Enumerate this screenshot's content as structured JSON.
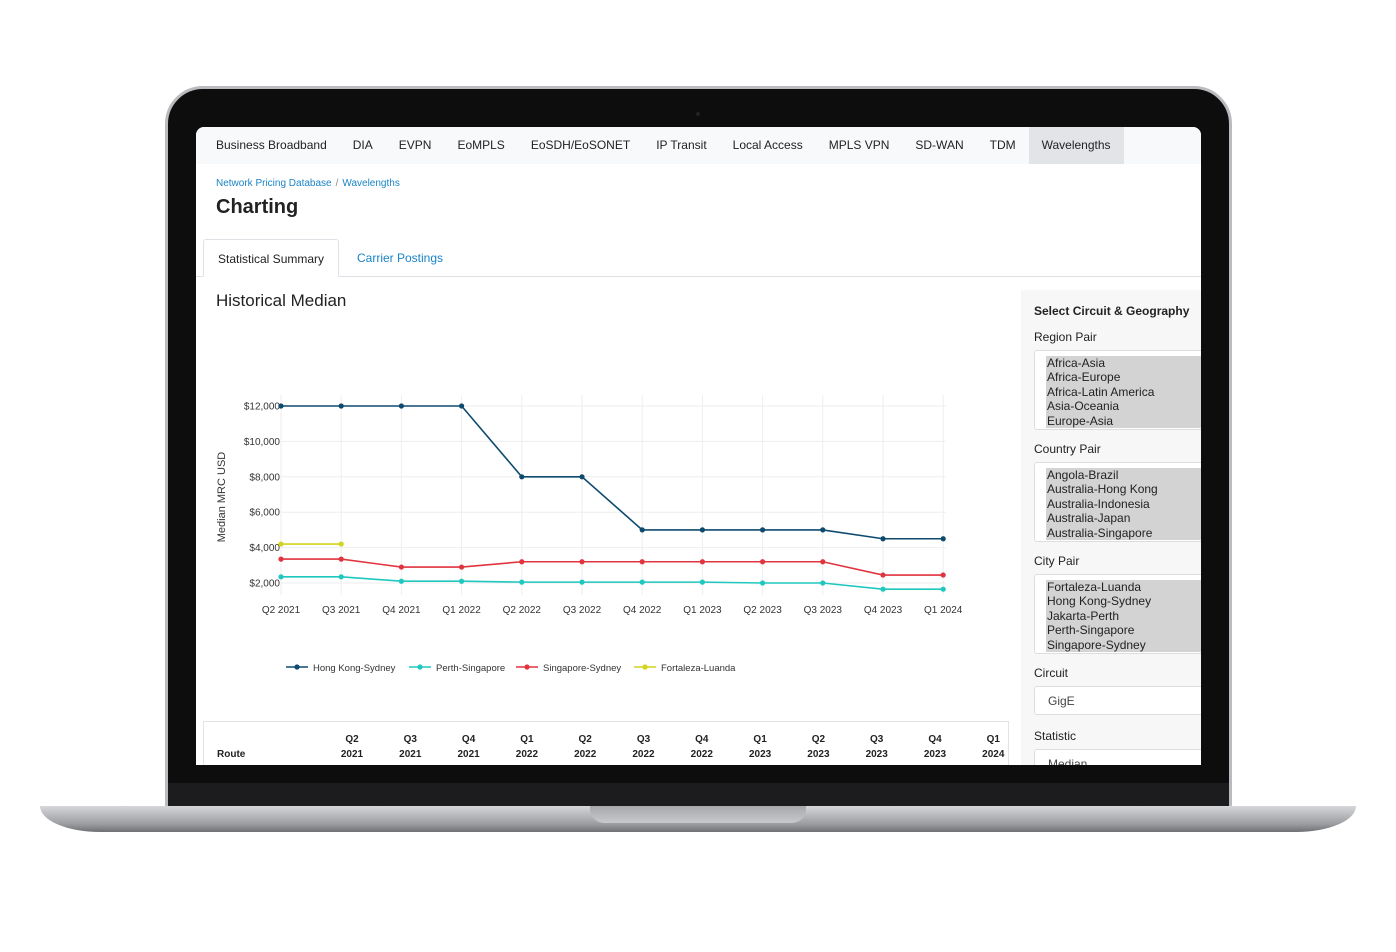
{
  "nav": {
    "items": [
      "Business Broadband",
      "DIA",
      "EVPN",
      "EoMPLS",
      "EoSDH/EoSONET",
      "IP Transit",
      "Local Access",
      "MPLS VPN",
      "SD-WAN",
      "TDM",
      "Wavelengths"
    ],
    "active": "Wavelengths"
  },
  "breadcrumb": [
    "Network Pricing Database",
    "Wavelengths"
  ],
  "page_title": "Charting",
  "tabs": [
    "Statistical Summary",
    "Carrier Postings"
  ],
  "section_title": "Historical Median",
  "sidebar": {
    "title": "Select Circuit & Geography",
    "region_label": "Region Pair",
    "region_options": [
      "Africa-Asia",
      "Africa-Europe",
      "Africa-Latin America",
      "Asia-Oceania",
      "Europe-Asia"
    ],
    "country_label": "Country Pair",
    "country_options": [
      "Angola-Brazil",
      "Australia-Hong Kong",
      "Australia-Indonesia",
      "Australia-Japan",
      "Australia-Singapore"
    ],
    "city_label": "City Pair",
    "city_options": [
      "Fortaleza-Luanda",
      "Hong Kong-Sydney",
      "Jakarta-Perth",
      "Perth-Singapore",
      "Singapore-Sydney"
    ],
    "circuit_label": "Circuit",
    "circuit_value": "GigE",
    "statistic_label": "Statistic",
    "statistic_value": "Median"
  },
  "table": {
    "route_header": "Route",
    "columns": [
      [
        "Q2",
        "2021"
      ],
      [
        "Q3",
        "2021"
      ],
      [
        "Q4",
        "2021"
      ],
      [
        "Q1",
        "2022"
      ],
      [
        "Q2",
        "2022"
      ],
      [
        "Q3",
        "2022"
      ],
      [
        "Q4",
        "2022"
      ],
      [
        "Q1",
        "2023"
      ],
      [
        "Q2",
        "2023"
      ],
      [
        "Q3",
        "2023"
      ],
      [
        "Q4",
        "2023"
      ],
      [
        "Q1",
        "2024"
      ]
    ]
  },
  "chart_data": {
    "type": "line",
    "ylabel": "Median MRC USD",
    "ylim": [
      0,
      12500
    ],
    "yticks": [
      2000,
      4000,
      6000,
      8000,
      10000,
      12000
    ],
    "ytick_labels": [
      "$2,000",
      "$4,000",
      "$6,000",
      "$8,000",
      "$10,000",
      "$12,000"
    ],
    "grid": true,
    "legend": "bottom",
    "categories": [
      "Q2 2021",
      "Q3 2021",
      "Q4 2021",
      "Q1 2022",
      "Q2 2022",
      "Q3 2022",
      "Q4 2022",
      "Q1 2023",
      "Q2 2023",
      "Q3 2023",
      "Q4 2023",
      "Q1 2024"
    ],
    "series": [
      {
        "name": "Hong Kong-Sydney",
        "color": "#0e4a6e",
        "values": [
          12000,
          12000,
          12000,
          12000,
          8000,
          8000,
          5000,
          5000,
          5000,
          5000,
          4500,
          4500
        ]
      },
      {
        "name": "Perth-Singapore",
        "color": "#1fc8bf",
        "values": [
          2350,
          2350,
          2100,
          2100,
          2050,
          2050,
          2050,
          2050,
          2000,
          2000,
          1650,
          1650
        ]
      },
      {
        "name": "Singapore-Sydney",
        "color": "#e0343f",
        "values": [
          3350,
          3350,
          2900,
          2900,
          3200,
          3200,
          3200,
          3200,
          3200,
          3200,
          2450,
          2450
        ]
      },
      {
        "name": "Fortaleza-Luanda",
        "color": "#d4d41c",
        "values": [
          4200,
          4200,
          null,
          null,
          null,
          null,
          null,
          null,
          null,
          null,
          null,
          null
        ]
      }
    ]
  }
}
